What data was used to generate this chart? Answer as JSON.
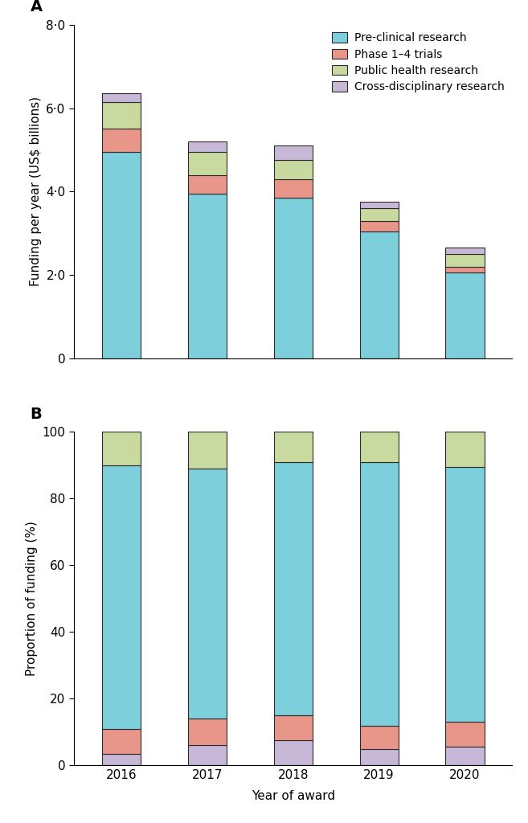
{
  "years": [
    "2016",
    "2017",
    "2018",
    "2019",
    "2020"
  ],
  "preclinical": [
    4.95,
    3.95,
    3.85,
    3.05,
    2.05
  ],
  "phase14": [
    0.55,
    0.45,
    0.45,
    0.25,
    0.15
  ],
  "public_health": [
    0.65,
    0.55,
    0.45,
    0.3,
    0.3
  ],
  "cross_disc": [
    0.2,
    0.25,
    0.35,
    0.15,
    0.15
  ],
  "prop_cross": [
    3.5,
    6.0,
    7.5,
    5.0,
    5.5
  ],
  "prop_phase": [
    7.5,
    8.0,
    7.5,
    7.0,
    7.5
  ],
  "prop_preclin": [
    79.0,
    75.0,
    76.0,
    79.0,
    76.5
  ],
  "prop_public": [
    10.0,
    11.0,
    9.0,
    9.0,
    10.5
  ],
  "color_preclinical": "#7ecfdc",
  "color_phase14": "#e8968a",
  "color_public": "#c8daa0",
  "color_cross": "#c8b8d8",
  "label_preclinical": "Pre-clinical research",
  "label_phase14": "Phase 1–4 trials",
  "label_public": "Public health research",
  "label_cross": "Cross-disciplinary research",
  "ylabel_a": "Funding per year (US$ billions)",
  "ylabel_b": "Proportion of funding (%)",
  "xlabel": "Year of award",
  "ylim_a": [
    0,
    8.0
  ],
  "yticks_a": [
    0,
    2.0,
    4.0,
    6.0,
    8.0
  ],
  "ylim_b": [
    0,
    100
  ],
  "yticks_b": [
    0,
    20,
    40,
    60,
    80,
    100
  ],
  "label_a": "A",
  "label_b": "B"
}
